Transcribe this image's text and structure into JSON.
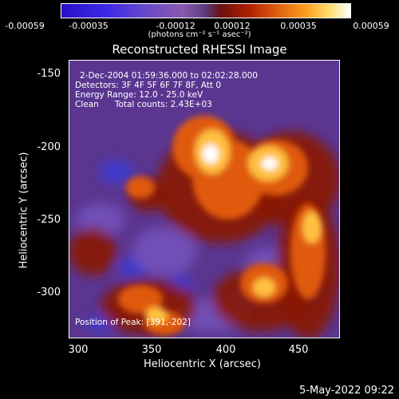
{
  "colorbar": {
    "ticks": [
      "-0.00059",
      "-0.00035",
      "-0.00012",
      "0.00012",
      "0.00035",
      "0.00059"
    ],
    "units": "(photons cm⁻² s⁻¹ asec⁻²)"
  },
  "chart_data": {
    "type": "heatmap",
    "title": "Reconstructed RHESSI Image",
    "xlabel": "Heliocentric X (arcsec)",
    "ylabel": "Heliocentric Y (arcsec)",
    "xlim": [
      287,
      479
    ],
    "ylim": [
      -330,
      -140
    ],
    "xticks": [
      "300",
      "350",
      "400",
      "450"
    ],
    "yticks": [
      "-150",
      "-200",
      "-250",
      "-300"
    ],
    "colorscale": [
      "#2a10c8",
      "#6a4ac8",
      "#5a3a78",
      "#b02000",
      "#ffa020",
      "#ffffff"
    ],
    "peak_position": [
      391,
      -202
    ],
    "annotations": {
      "time": "2-Dec-2004 01:59:36.000 to 02:02:28.000",
      "detectors": "Detectors: 3F 4F 5F 6F 7F 8F, Att 0",
      "energy": "Energy Range: 12.0 - 25.0 keV",
      "clean_line": "Clean      Total counts: 2.43E+03",
      "peak": "Position of Peak: [391,-202]"
    }
  },
  "footer": {
    "timestamp": "5-May-2022 09:22"
  }
}
